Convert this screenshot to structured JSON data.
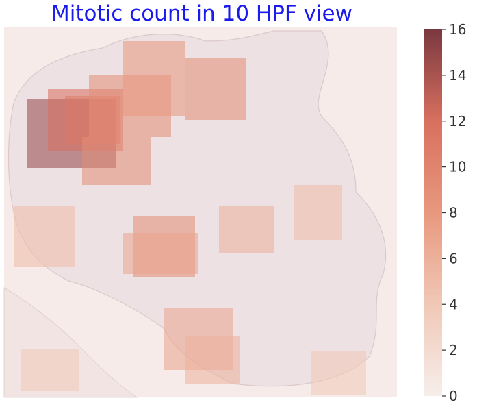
{
  "chart_data": {
    "type": "heatmap",
    "title": "Mitotic count in 10 HPF view",
    "title_color": "#1a1aee",
    "colorbar": {
      "min": 0,
      "max": 16,
      "ticks": [
        0,
        2,
        4,
        6,
        8,
        10,
        12,
        14,
        16
      ],
      "colors": [
        "#f7eeeb",
        "#f0c8b6",
        "#e8987e",
        "#d8705f",
        "#7a3840"
      ]
    },
    "grid": false,
    "background": "whole-slide tissue image (pale pink)",
    "hotspots": [
      {
        "region": "upper-left",
        "value": 15
      },
      {
        "region": "upper-left",
        "value": 12
      },
      {
        "region": "upper-left",
        "value": 11
      },
      {
        "region": "upper-left",
        "value": 9
      },
      {
        "region": "upper-center",
        "value": 9
      },
      {
        "region": "upper-center",
        "value": 8
      },
      {
        "region": "top-right",
        "value": 9
      },
      {
        "region": "center",
        "value": 9
      },
      {
        "region": "center",
        "value": 7
      },
      {
        "region": "center-right",
        "value": 6
      },
      {
        "region": "right",
        "value": 5
      },
      {
        "region": "left",
        "value": 5
      },
      {
        "region": "lower-center",
        "value": 7
      },
      {
        "region": "lower-center",
        "value": 6
      },
      {
        "region": "bottom-left",
        "value": 4
      },
      {
        "region": "bottom-right",
        "value": 4
      }
    ]
  }
}
